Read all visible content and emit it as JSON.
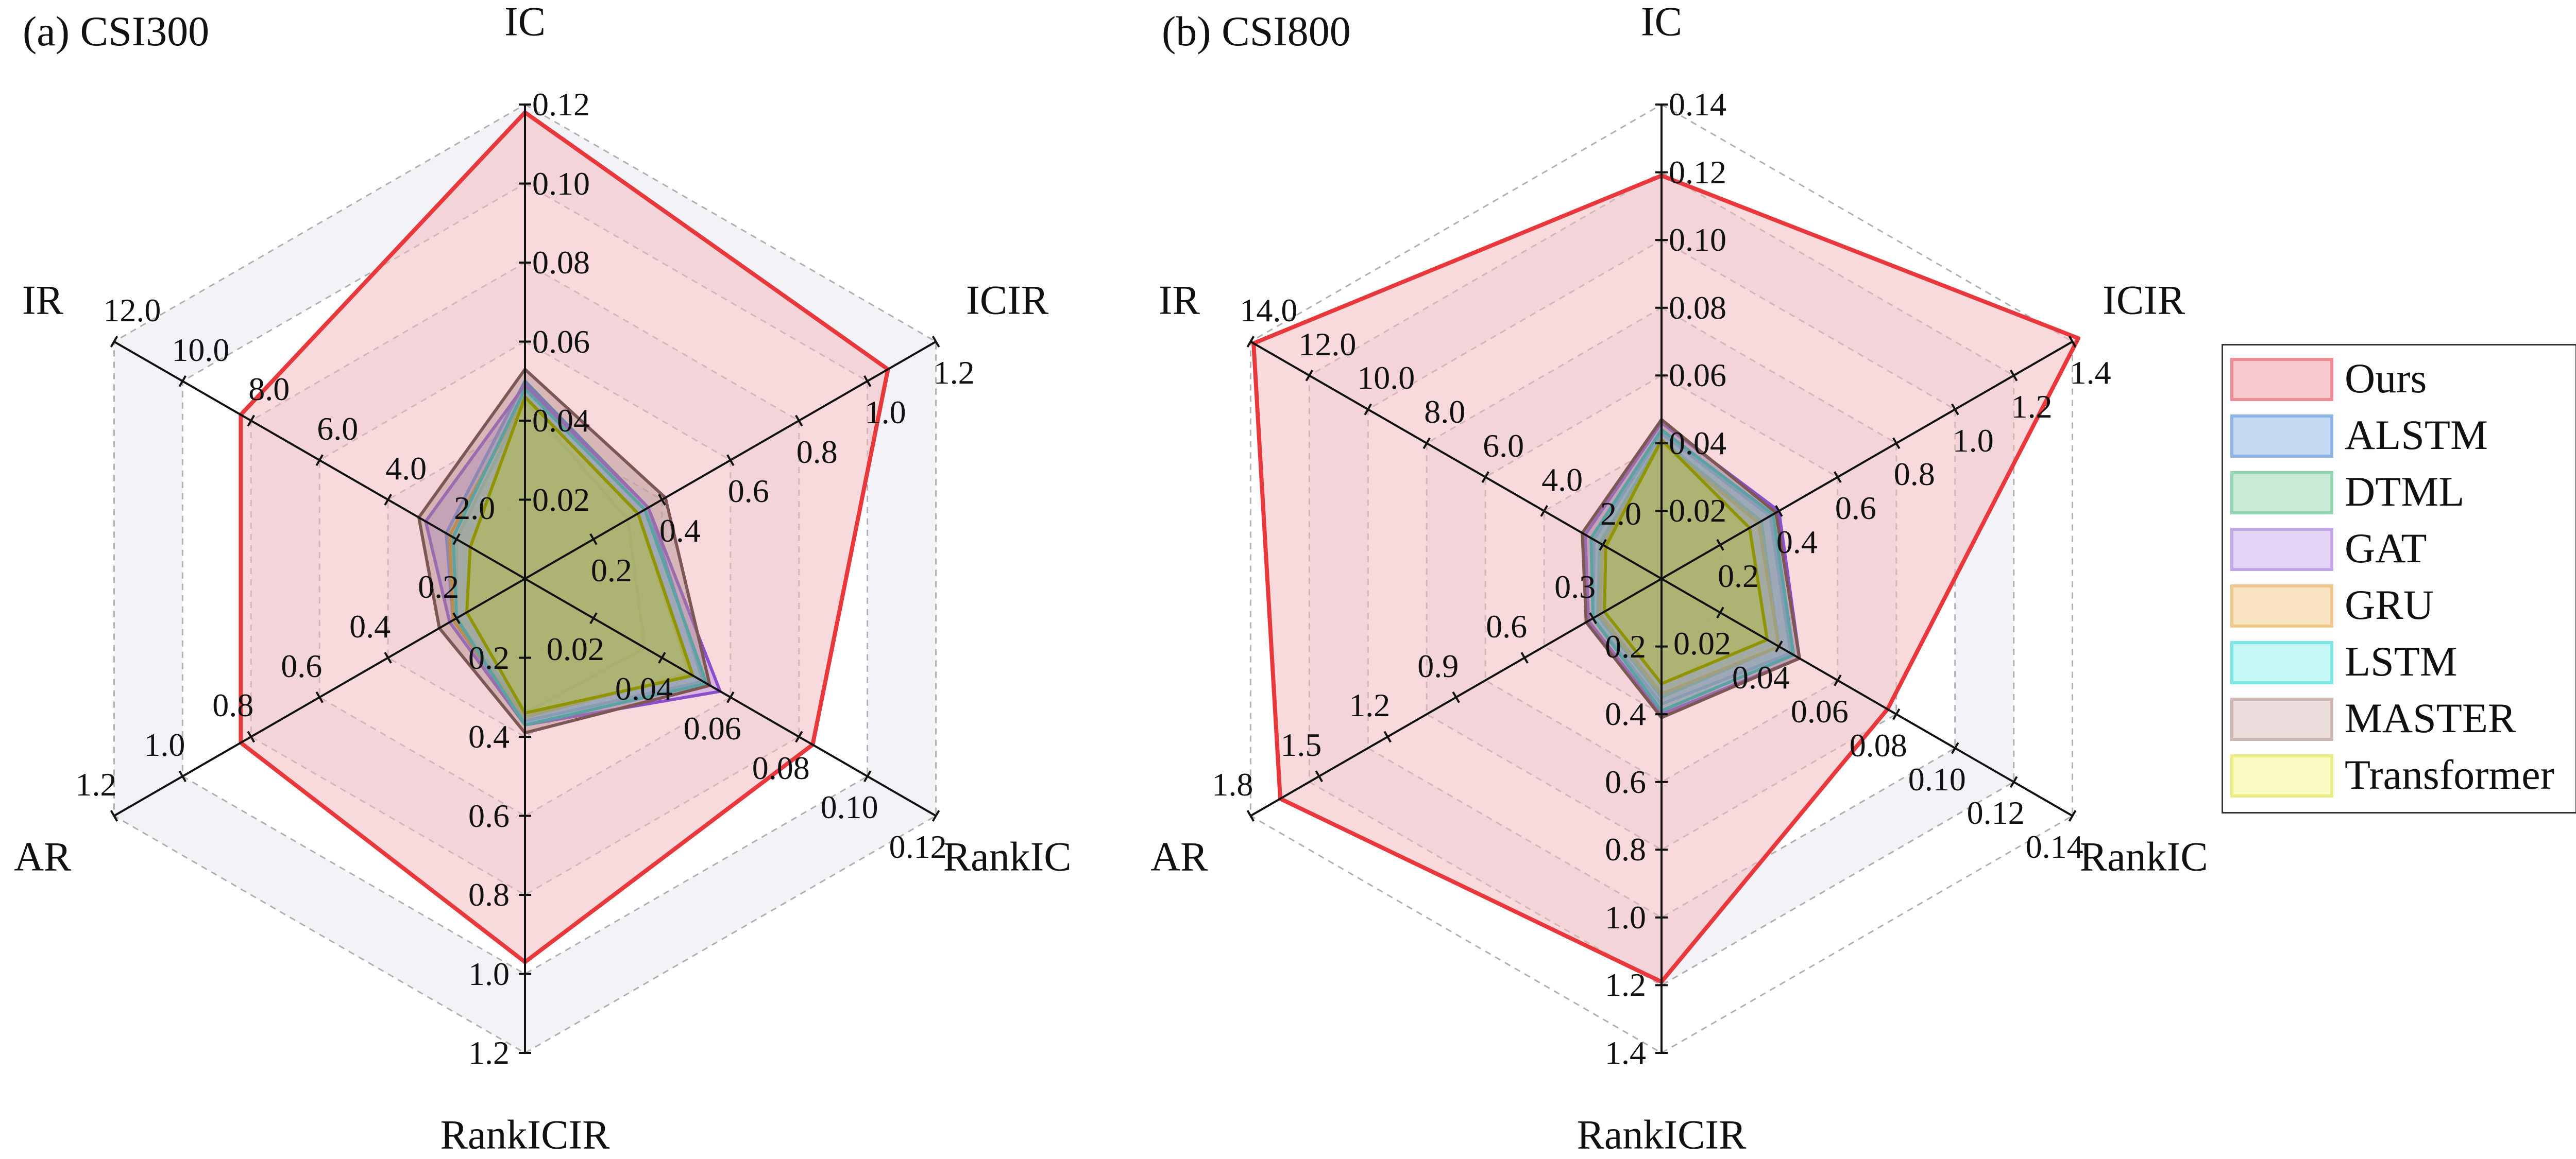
{
  "chart_data": [
    {
      "type": "radar",
      "title": "(a) CSI300",
      "axes": [
        {
          "name": "IC",
          "ticks": [
            "0.02",
            "0.04",
            "0.06",
            "0.08",
            "0.10",
            "0.12"
          ],
          "range": [
            0,
            0.12
          ]
        },
        {
          "name": "ICIR",
          "ticks": [
            "0.2",
            "0.4",
            "0.6",
            "0.8",
            "1.0",
            "1.2"
          ],
          "range": [
            0,
            1.2
          ]
        },
        {
          "name": "RankIC",
          "ticks": [
            "0.02",
            "0.04",
            "0.06",
            "0.08",
            "0.10",
            "0.12"
          ],
          "range": [
            0,
            0.12
          ]
        },
        {
          "name": "RankICIR",
          "ticks": [
            "0.2",
            "0.4",
            "0.6",
            "0.8",
            "1.0",
            "1.2"
          ],
          "range": [
            0,
            1.2
          ]
        },
        {
          "name": "AR",
          "ticks": [
            "0.2",
            "0.4",
            "0.6",
            "0.8",
            "1.0",
            "1.2"
          ],
          "range": [
            0,
            1.2
          ]
        },
        {
          "name": "IR",
          "ticks": [
            "2.0",
            "4.0",
            "6.0",
            "8.0",
            "10.0",
            "12.0"
          ],
          "range": [
            0,
            12
          ]
        }
      ],
      "series": [
        {
          "name": "Ours",
          "values": [
            0.118,
            1.06,
            0.084,
            0.97,
            0.83,
            8.3
          ]
        },
        {
          "name": "ALSTM",
          "values": [
            0.05,
            0.36,
            0.052,
            0.36,
            0.21,
            2.3
          ]
        },
        {
          "name": "DTML",
          "values": [
            0.045,
            0.3,
            0.035,
            0.34,
            0.2,
            2.0
          ]
        },
        {
          "name": "GAT",
          "values": [
            0.049,
            0.36,
            0.057,
            0.37,
            0.22,
            2.9
          ]
        },
        {
          "name": "GRU",
          "values": [
            0.046,
            0.33,
            0.048,
            0.35,
            0.21,
            2.2
          ]
        },
        {
          "name": "LSTM",
          "values": [
            0.048,
            0.35,
            0.053,
            0.37,
            0.2,
            2.1
          ]
        },
        {
          "name": "MASTER",
          "values": [
            0.053,
            0.41,
            0.054,
            0.39,
            0.25,
            3.1
          ]
        },
        {
          "name": "Transformer",
          "values": [
            0.046,
            0.33,
            0.049,
            0.34,
            0.17,
            1.6
          ]
        }
      ]
    },
    {
      "type": "radar",
      "title": "(b) CSI800",
      "axes": [
        {
          "name": "IC",
          "ticks": [
            "0.02",
            "0.04",
            "0.06",
            "0.08",
            "0.10",
            "0.12",
            "0.14"
          ],
          "range": [
            0,
            0.14
          ]
        },
        {
          "name": "ICIR",
          "ticks": [
            "0.2",
            "0.4",
            "0.6",
            "0.8",
            "1.0",
            "1.2",
            "1.4"
          ],
          "range": [
            0,
            1.4
          ]
        },
        {
          "name": "RankIC",
          "ticks": [
            "0.02",
            "0.04",
            "0.06",
            "0.08",
            "0.10",
            "0.12",
            "0.14"
          ],
          "range": [
            0,
            0.14
          ]
        },
        {
          "name": "RankICIR",
          "ticks": [
            "0.2",
            "0.4",
            "0.6",
            "0.8",
            "1.0",
            "1.2",
            "1.4"
          ],
          "range": [
            0,
            1.4
          ]
        },
        {
          "name": "AR",
          "ticks": [
            "0.3",
            "0.6",
            "0.9",
            "1.2",
            "1.5",
            "1.8"
          ],
          "range": [
            0,
            1.8
          ]
        },
        {
          "name": "IR",
          "ticks": [
            "2.0",
            "4.0",
            "6.0",
            "8.0",
            "10.0",
            "12.0",
            "14.0"
          ],
          "range": [
            0,
            14
          ]
        }
      ],
      "series": [
        {
          "name": "Ours",
          "values": [
            0.119,
            1.42,
            0.077,
            1.19,
            1.67,
            13.9
          ]
        },
        {
          "name": "ALSTM",
          "values": [
            0.043,
            0.37,
            0.044,
            0.37,
            0.3,
            2.3
          ]
        },
        {
          "name": "DTML",
          "values": [
            0.041,
            0.34,
            0.04,
            0.35,
            0.28,
            2.1
          ]
        },
        {
          "name": "GAT",
          "values": [
            0.046,
            0.4,
            0.047,
            0.4,
            0.32,
            2.6
          ]
        },
        {
          "name": "GRU",
          "values": [
            0.04,
            0.33,
            0.04,
            0.34,
            0.27,
            2.0
          ]
        },
        {
          "name": "LSTM",
          "values": [
            0.044,
            0.38,
            0.045,
            0.39,
            0.3,
            2.4
          ]
        },
        {
          "name": "MASTER",
          "values": [
            0.047,
            0.39,
            0.047,
            0.41,
            0.33,
            2.7
          ]
        },
        {
          "name": "Transformer",
          "values": [
            0.041,
            0.3,
            0.036,
            0.31,
            0.25,
            1.9
          ]
        }
      ]
    }
  ],
  "legend": {
    "placement": "right",
    "items": [
      {
        "name": "Ours",
        "fill": "#f7c8cc",
        "stroke": "#f08a92"
      },
      {
        "name": "ALSTM",
        "fill": "#c6d9f3",
        "stroke": "#8db2e6"
      },
      {
        "name": "DTML",
        "fill": "#c9ecd8",
        "stroke": "#93d6b1"
      },
      {
        "name": "GAT",
        "fill": "#e3d3f5",
        "stroke": "#c3a7ea"
      },
      {
        "name": "GRU",
        "fill": "#f9e3c0",
        "stroke": "#f0c78a"
      },
      {
        "name": "LSTM",
        "fill": "#c6f7f7",
        "stroke": "#7ae6e6"
      },
      {
        "name": "MASTER",
        "fill": "#e9dcdb",
        "stroke": "#ccb4b2"
      },
      {
        "name": "Transformer",
        "fill": "#fafac2",
        "stroke": "#ecec84"
      }
    ]
  },
  "series_style": {
    "Ours": {
      "fill": "#f3b9c0",
      "stroke": "#e8383c"
    },
    "ALSTM": {
      "fill": "#7fa6dc",
      "stroke": "#3c78c8"
    },
    "DTML": {
      "fill": "#7cc79a",
      "stroke": "#2f9e63"
    },
    "GAT": {
      "fill": "#b48ee0",
      "stroke": "#8a4fcf"
    },
    "GRU": {
      "fill": "#e8b560",
      "stroke": "#c98a1a"
    },
    "LSTM": {
      "fill": "#60d8d8",
      "stroke": "#16b5b8"
    },
    "MASTER": {
      "fill": "#b08e8a",
      "stroke": "#7d5753"
    },
    "Transformer": {
      "fill": "#b9bf3a",
      "stroke": "#8f9400"
    }
  }
}
